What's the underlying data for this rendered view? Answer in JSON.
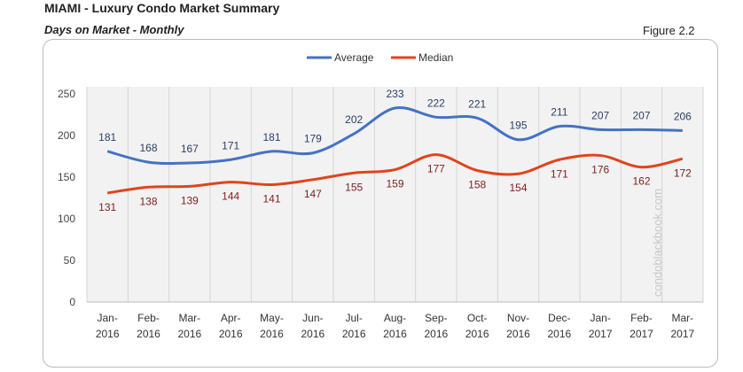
{
  "header": {
    "title": "MIAMI - Luxury Condo Market Summary",
    "subtitle": "Days on Market - Monthly",
    "figure": "Figure 2.2"
  },
  "watermark": "condoblackbook.com",
  "chart_data": {
    "type": "line",
    "categories": [
      "Jan-2016",
      "Feb-2016",
      "Mar-2016",
      "Apr-2016",
      "May-2016",
      "Jun-2016",
      "Jul-2016",
      "Aug-2016",
      "Sep-2016",
      "Oct-2016",
      "Nov-2016",
      "Dec-2016",
      "Jan-2017",
      "Feb-2017",
      "Mar-2017"
    ],
    "series": [
      {
        "name": "Average",
        "color": "#4472c4",
        "values": [
          181,
          168,
          167,
          171,
          181,
          179,
          202,
          233,
          222,
          221,
          195,
          211,
          207,
          207,
          206
        ]
      },
      {
        "name": "Median",
        "color": "#e0441c",
        "values": [
          131,
          138,
          139,
          144,
          141,
          147,
          155,
          159,
          177,
          158,
          154,
          171,
          176,
          162,
          172
        ]
      }
    ],
    "ylim": [
      0,
      250
    ],
    "yticks": [
      0,
      50,
      100,
      150,
      200,
      250
    ],
    "grid": "vertical",
    "legend": "top-center",
    "smooth": true,
    "data_labels": true
  }
}
